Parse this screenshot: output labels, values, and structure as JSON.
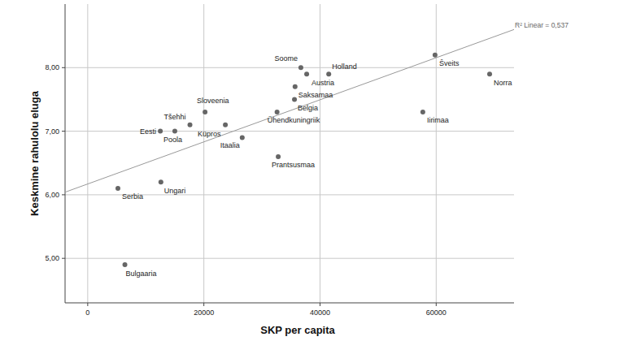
{
  "chart_data": {
    "type": "scatter",
    "x_label": "SKP per capita",
    "y_label": "Keskmine rahulolu eluga",
    "point_labels": [
      "Soome",
      "Austria",
      "Holland",
      "Saksamaa",
      "Belgia",
      "Ühendkuningriik",
      "Iirimaa",
      "Šveits",
      "Norra",
      "Prantsusmaa",
      "Itaalia",
      "Küpros",
      "Sloveenia",
      "Tšehhi",
      "Poola",
      "Eesti",
      "Ungari",
      "Serbia",
      "Bulgaaria"
    ],
    "x": [
      36700,
      37700,
      41500,
      35700,
      35600,
      32600,
      57700,
      59800,
      69200,
      32800,
      26600,
      23700,
      20200,
      17600,
      15000,
      12500,
      12600,
      5200,
      6400
    ],
    "values": [
      8.0,
      7.9,
      7.9,
      7.7,
      7.5,
      7.3,
      7.3,
      8.2,
      7.9,
      6.6,
      6.9,
      7.1,
      7.3,
      7.1,
      7.0,
      7.0,
      6.2,
      6.1,
      4.9
    ],
    "color": "#666666",
    "marker": "circle",
    "xlim": [
      -3900,
      73400
    ],
    "ylim": [
      4.3,
      9.0
    ],
    "xticks": [
      0,
      20000,
      40000,
      60000
    ],
    "yticks": [
      {
        "value": 5,
        "label": "5,00"
      },
      {
        "value": 6,
        "label": "6,00"
      },
      {
        "value": 7,
        "label": "7,00"
      },
      {
        "value": 8,
        "label": "8,00"
      }
    ],
    "grid": true,
    "trendline": {
      "label": "R² Linear = 0,537",
      "intercept": 6.17,
      "slope": 3.31e-05,
      "color": "#999999"
    }
  }
}
